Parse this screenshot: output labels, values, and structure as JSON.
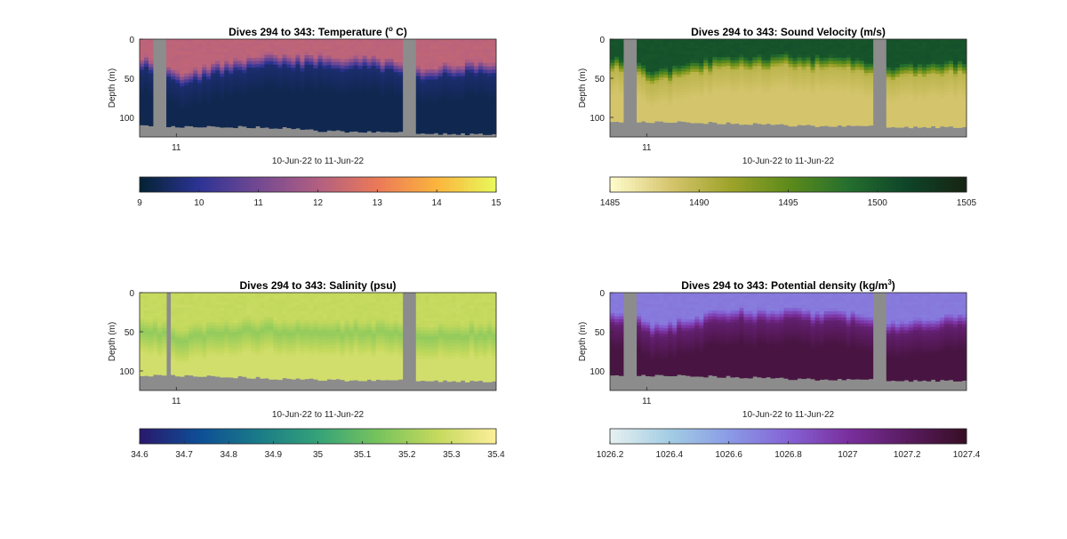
{
  "chart_data": [
    {
      "type": "heatmap",
      "title": "Dives 294 to 343: Temperature (",
      "title_sup": "o",
      "title_suffix": " C)",
      "xlabel": "10-Jun-22 to 11-Jun-22",
      "ylabel": "Depth (m)",
      "x_ticks": [
        "11"
      ],
      "y_ticks": [
        0,
        50,
        100
      ],
      "ylim": [
        0,
        125
      ],
      "colorbar": {
        "min": 9,
        "max": 15,
        "ticks": [
          9,
          10,
          11,
          12,
          13,
          14,
          15
        ],
        "colormap": "thermal"
      },
      "gaps": [
        [
          0.035,
          0.075
        ],
        [
          0.74,
          0.77
        ]
      ],
      "surface_value": 12.2,
      "deep_value": 9.3,
      "mid_value": 9.6,
      "interface_depth": [
        [
          0.0,
          30
        ],
        [
          0.08,
          38
        ],
        [
          0.12,
          50
        ],
        [
          0.17,
          45
        ],
        [
          0.22,
          38
        ],
        [
          0.27,
          35
        ],
        [
          0.32,
          30
        ],
        [
          0.37,
          28
        ],
        [
          0.42,
          30
        ],
        [
          0.5,
          28
        ],
        [
          0.56,
          32
        ],
        [
          0.62,
          30
        ],
        [
          0.7,
          34
        ],
        [
          0.78,
          45
        ],
        [
          0.85,
          40
        ],
        [
          0.92,
          38
        ],
        [
          1.0,
          35
        ]
      ],
      "bottom_depth": [
        [
          0.0,
          108
        ],
        [
          0.08,
          112
        ],
        [
          0.2,
          112
        ],
        [
          0.3,
          112
        ],
        [
          0.4,
          113
        ],
        [
          0.5,
          117
        ],
        [
          0.6,
          118
        ],
        [
          0.7,
          119
        ],
        [
          0.8,
          120
        ],
        [
          0.9,
          121
        ],
        [
          1.0,
          122
        ]
      ]
    },
    {
      "type": "heatmap",
      "title": "Dives 294 to 343: Sound Velocity (m/s)",
      "xlabel": "10-Jun-22 to 11-Jun-22",
      "ylabel": "Depth (m)",
      "x_ticks": [
        "11"
      ],
      "y_ticks": [
        0,
        50,
        100
      ],
      "ylim": [
        0,
        125
      ],
      "colorbar": {
        "min": 1485,
        "max": 1505,
        "ticks": [
          1485,
          1490,
          1495,
          1500,
          1505
        ],
        "colormap": "speed"
      },
      "gaps": [
        [
          0.035,
          0.075
        ],
        [
          0.74,
          0.77
        ]
      ],
      "surface_value": 1500.5,
      "deep_value": 1488.5,
      "mid_value": 1490,
      "interface_depth": [
        [
          0.0,
          30
        ],
        [
          0.08,
          38
        ],
        [
          0.12,
          50
        ],
        [
          0.17,
          45
        ],
        [
          0.22,
          38
        ],
        [
          0.27,
          35
        ],
        [
          0.32,
          30
        ],
        [
          0.37,
          28
        ],
        [
          0.42,
          30
        ],
        [
          0.5,
          28
        ],
        [
          0.56,
          32
        ],
        [
          0.62,
          30
        ],
        [
          0.7,
          34
        ],
        [
          0.78,
          45
        ],
        [
          0.85,
          40
        ],
        [
          0.92,
          38
        ],
        [
          1.0,
          35
        ]
      ],
      "bottom_depth": [
        [
          0.0,
          104
        ],
        [
          0.08,
          106
        ],
        [
          0.2,
          106
        ],
        [
          0.3,
          107
        ],
        [
          0.4,
          108
        ],
        [
          0.5,
          110
        ],
        [
          0.6,
          111
        ],
        [
          0.7,
          111
        ],
        [
          0.8,
          112
        ],
        [
          0.9,
          112
        ],
        [
          1.0,
          113
        ]
      ]
    },
    {
      "type": "heatmap",
      "title": "Dives 294 to 343: Salinity (psu)",
      "xlabel": "10-Jun-22 to 11-Jun-22",
      "ylabel": "Depth (m)",
      "x_ticks": [
        "11"
      ],
      "y_ticks": [
        0,
        50,
        100
      ],
      "ylim": [
        0,
        125
      ],
      "colorbar": {
        "min": 34.6,
        "max": 35.4,
        "ticks": [
          34.6,
          34.7,
          34.8,
          34.9,
          35,
          35.1,
          35.2,
          35.3,
          35.4
        ],
        "colormap": "haline"
      },
      "gaps": [
        [
          0.075,
          0.085
        ],
        [
          0.74,
          0.77
        ]
      ],
      "surface_value": 35.27,
      "deep_value": 35.3,
      "mid_value": 35.18,
      "interface_depth": [
        [
          0.0,
          40
        ],
        [
          0.08,
          45
        ],
        [
          0.12,
          52
        ],
        [
          0.17,
          48
        ],
        [
          0.22,
          45
        ],
        [
          0.27,
          42
        ],
        [
          0.32,
          42
        ],
        [
          0.37,
          40
        ],
        [
          0.42,
          45
        ],
        [
          0.5,
          42
        ],
        [
          0.56,
          44
        ],
        [
          0.62,
          42
        ],
        [
          0.7,
          44
        ],
        [
          0.78,
          50
        ],
        [
          0.85,
          48
        ],
        [
          0.92,
          45
        ],
        [
          1.0,
          45
        ]
      ],
      "bottom_depth": [
        [
          0.0,
          105
        ],
        [
          0.08,
          106
        ],
        [
          0.2,
          107
        ],
        [
          0.3,
          108
        ],
        [
          0.4,
          110
        ],
        [
          0.5,
          111
        ],
        [
          0.6,
          112
        ],
        [
          0.7,
          112
        ],
        [
          0.8,
          112
        ],
        [
          0.9,
          113
        ],
        [
          1.0,
          114
        ]
      ]
    },
    {
      "type": "heatmap",
      "title": "Dives 294 to 343: Potential density (kg/m",
      "title_sup": "3",
      "title_suffix": ")",
      "xlabel": "10-Jun-22 to 11-Jun-22",
      "ylabel": "Depth (m)",
      "x_ticks": [
        "11"
      ],
      "y_ticks": [
        0,
        50,
        100
      ],
      "ylim": [
        0,
        125
      ],
      "colorbar": {
        "min": 1026.2,
        "max": 1027.4,
        "ticks": [
          1026.2,
          1026.4,
          1026.6,
          1026.8,
          1027,
          1027.2,
          1027.4
        ],
        "colormap": "dense"
      },
      "gaps": [
        [
          0.035,
          0.075
        ],
        [
          0.74,
          0.77
        ]
      ],
      "surface_value": 1026.72,
      "deep_value": 1027.3,
      "mid_value": 1027.15,
      "interface_depth": [
        [
          0.0,
          30
        ],
        [
          0.08,
          38
        ],
        [
          0.12,
          50
        ],
        [
          0.17,
          45
        ],
        [
          0.22,
          38
        ],
        [
          0.27,
          35
        ],
        [
          0.32,
          30
        ],
        [
          0.37,
          28
        ],
        [
          0.42,
          30
        ],
        [
          0.5,
          28
        ],
        [
          0.56,
          32
        ],
        [
          0.62,
          30
        ],
        [
          0.7,
          34
        ],
        [
          0.78,
          45
        ],
        [
          0.85,
          40
        ],
        [
          0.92,
          38
        ],
        [
          1.0,
          35
        ]
      ],
      "bottom_depth": [
        [
          0.0,
          104
        ],
        [
          0.08,
          106
        ],
        [
          0.2,
          106
        ],
        [
          0.3,
          107
        ],
        [
          0.4,
          108
        ],
        [
          0.5,
          110
        ],
        [
          0.6,
          111
        ],
        [
          0.7,
          111
        ],
        [
          0.8,
          112
        ],
        [
          0.9,
          112
        ],
        [
          1.0,
          113
        ]
      ]
    }
  ],
  "colors": {
    "no_data": "#8c8c8c",
    "thermal": [
      "#042333",
      "#2c3395",
      "#744992",
      "#b15f82",
      "#eb7958",
      "#fbb43d",
      "#e8fa5b"
    ],
    "speed": [
      "#fffdcd",
      "#d7c66f",
      "#9fa42b",
      "#5e8b1a",
      "#256f2e",
      "#0e4429",
      "#172313"
    ],
    "haline": [
      "#2a186c",
      "#0e4e96",
      "#1a7b88",
      "#35a279",
      "#76c35d",
      "#c4d95d",
      "#fdef9a"
    ],
    "dense": [
      "#e6f1f1",
      "#a3cde4",
      "#8a9be6",
      "#8563d5",
      "#7a2f9e",
      "#5a1b60",
      "#360e24"
    ]
  }
}
